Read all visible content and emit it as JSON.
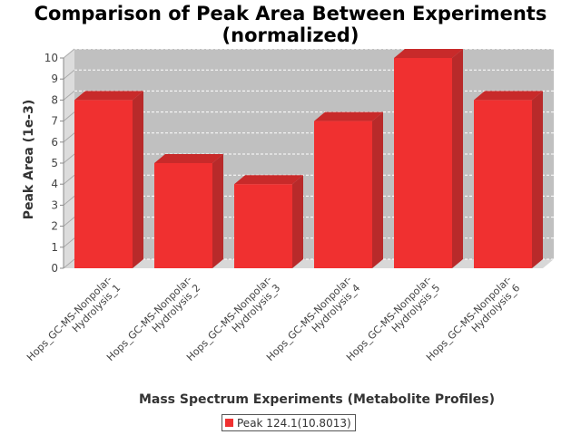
{
  "chart_data": {
    "type": "bar",
    "title": "Comparison of Peak Area Between Experiments",
    "subtitle": "(normalized)",
    "xlabel": "Mass Spectrum Experiments (Metabolite Profiles)",
    "ylabel": "Peak Area (1e-3)",
    "categories": [
      "Hops_GC-MS-Nonpolar-Hydrolysis_1",
      "Hops_GC-MS-Nonpolar-Hydrolysis_2",
      "Hops_GC-MS-Nonpolar-Hydrolysis_3",
      "Hops_GC-MS-Nonpolar-Hydrolysis_4",
      "Hops_GC-MS-Nonpolar-Hydrolysis_5",
      "Hops_GC-MS-Nonpolar-Hydrolysis_6"
    ],
    "category_lines": [
      [
        "Hops_GC-MS-Nonpolar-",
        "Hydrolysis_1"
      ],
      [
        "Hops_GC-MS-Nonpolar-",
        "Hydrolysis_2"
      ],
      [
        "Hops_GC-MS-Nonpolar-",
        "Hydrolysis_3"
      ],
      [
        "Hops_GC-MS-Nonpolar-",
        "Hydrolysis_4"
      ],
      [
        "Hops_GC-MS-Nonpolar-",
        "Hydrolysis_5"
      ],
      [
        "Hops_GC-MS-Nonpolar-",
        "Hydrolysis_6"
      ]
    ],
    "series": [
      {
        "name": "Peak 124.1(10.8013)",
        "values": [
          8,
          5,
          4,
          7,
          10,
          8
        ]
      }
    ],
    "ylim": [
      0,
      10
    ],
    "yticks": [
      "0",
      "1",
      "2",
      "3",
      "4",
      "5",
      "6",
      "7",
      "8",
      "9",
      "10"
    ],
    "grid": true,
    "legend_position": "bottom",
    "colors": {
      "bar": "#f03030",
      "bar_side": "#b82a2a",
      "bar_top": "#c82a2a",
      "plot_bg": "#c0c0c0",
      "wall_side": "#dcdcdc",
      "floor": "#d8d8d8",
      "grid": "#ffffff",
      "axis_text": "#444444"
    }
  }
}
